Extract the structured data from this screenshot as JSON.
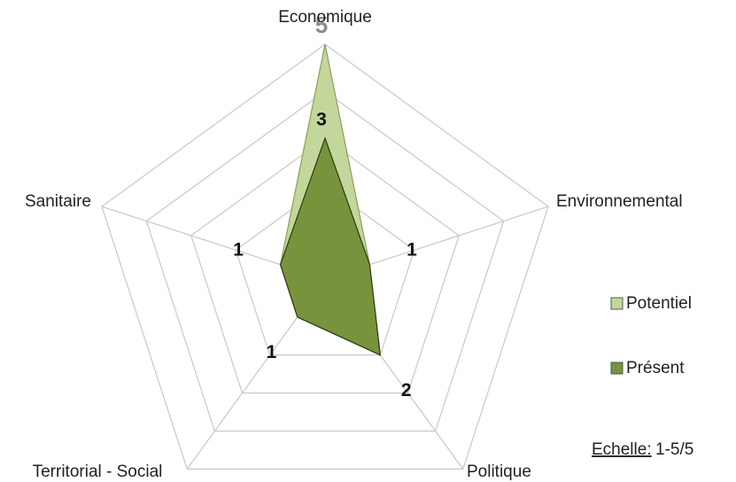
{
  "chart_data": {
    "type": "radar",
    "categories": [
      "Economique",
      "Environnemental",
      "Politique",
      "Territorial - Social",
      "Sanitaire"
    ],
    "series": [
      {
        "name": "Potentiel",
        "color": "#c3d69b",
        "values": [
          5,
          1,
          2,
          1,
          1
        ]
      },
      {
        "name": "Présent",
        "color": "#77933c",
        "values": [
          3,
          1,
          2,
          1,
          1
        ]
      }
    ],
    "rlim": [
      0,
      5
    ],
    "rticks": [
      1,
      2,
      3,
      4,
      5
    ],
    "grid": true,
    "legend": "right",
    "scale_label": "Echelle:",
    "scale_value": "1-5/5"
  }
}
